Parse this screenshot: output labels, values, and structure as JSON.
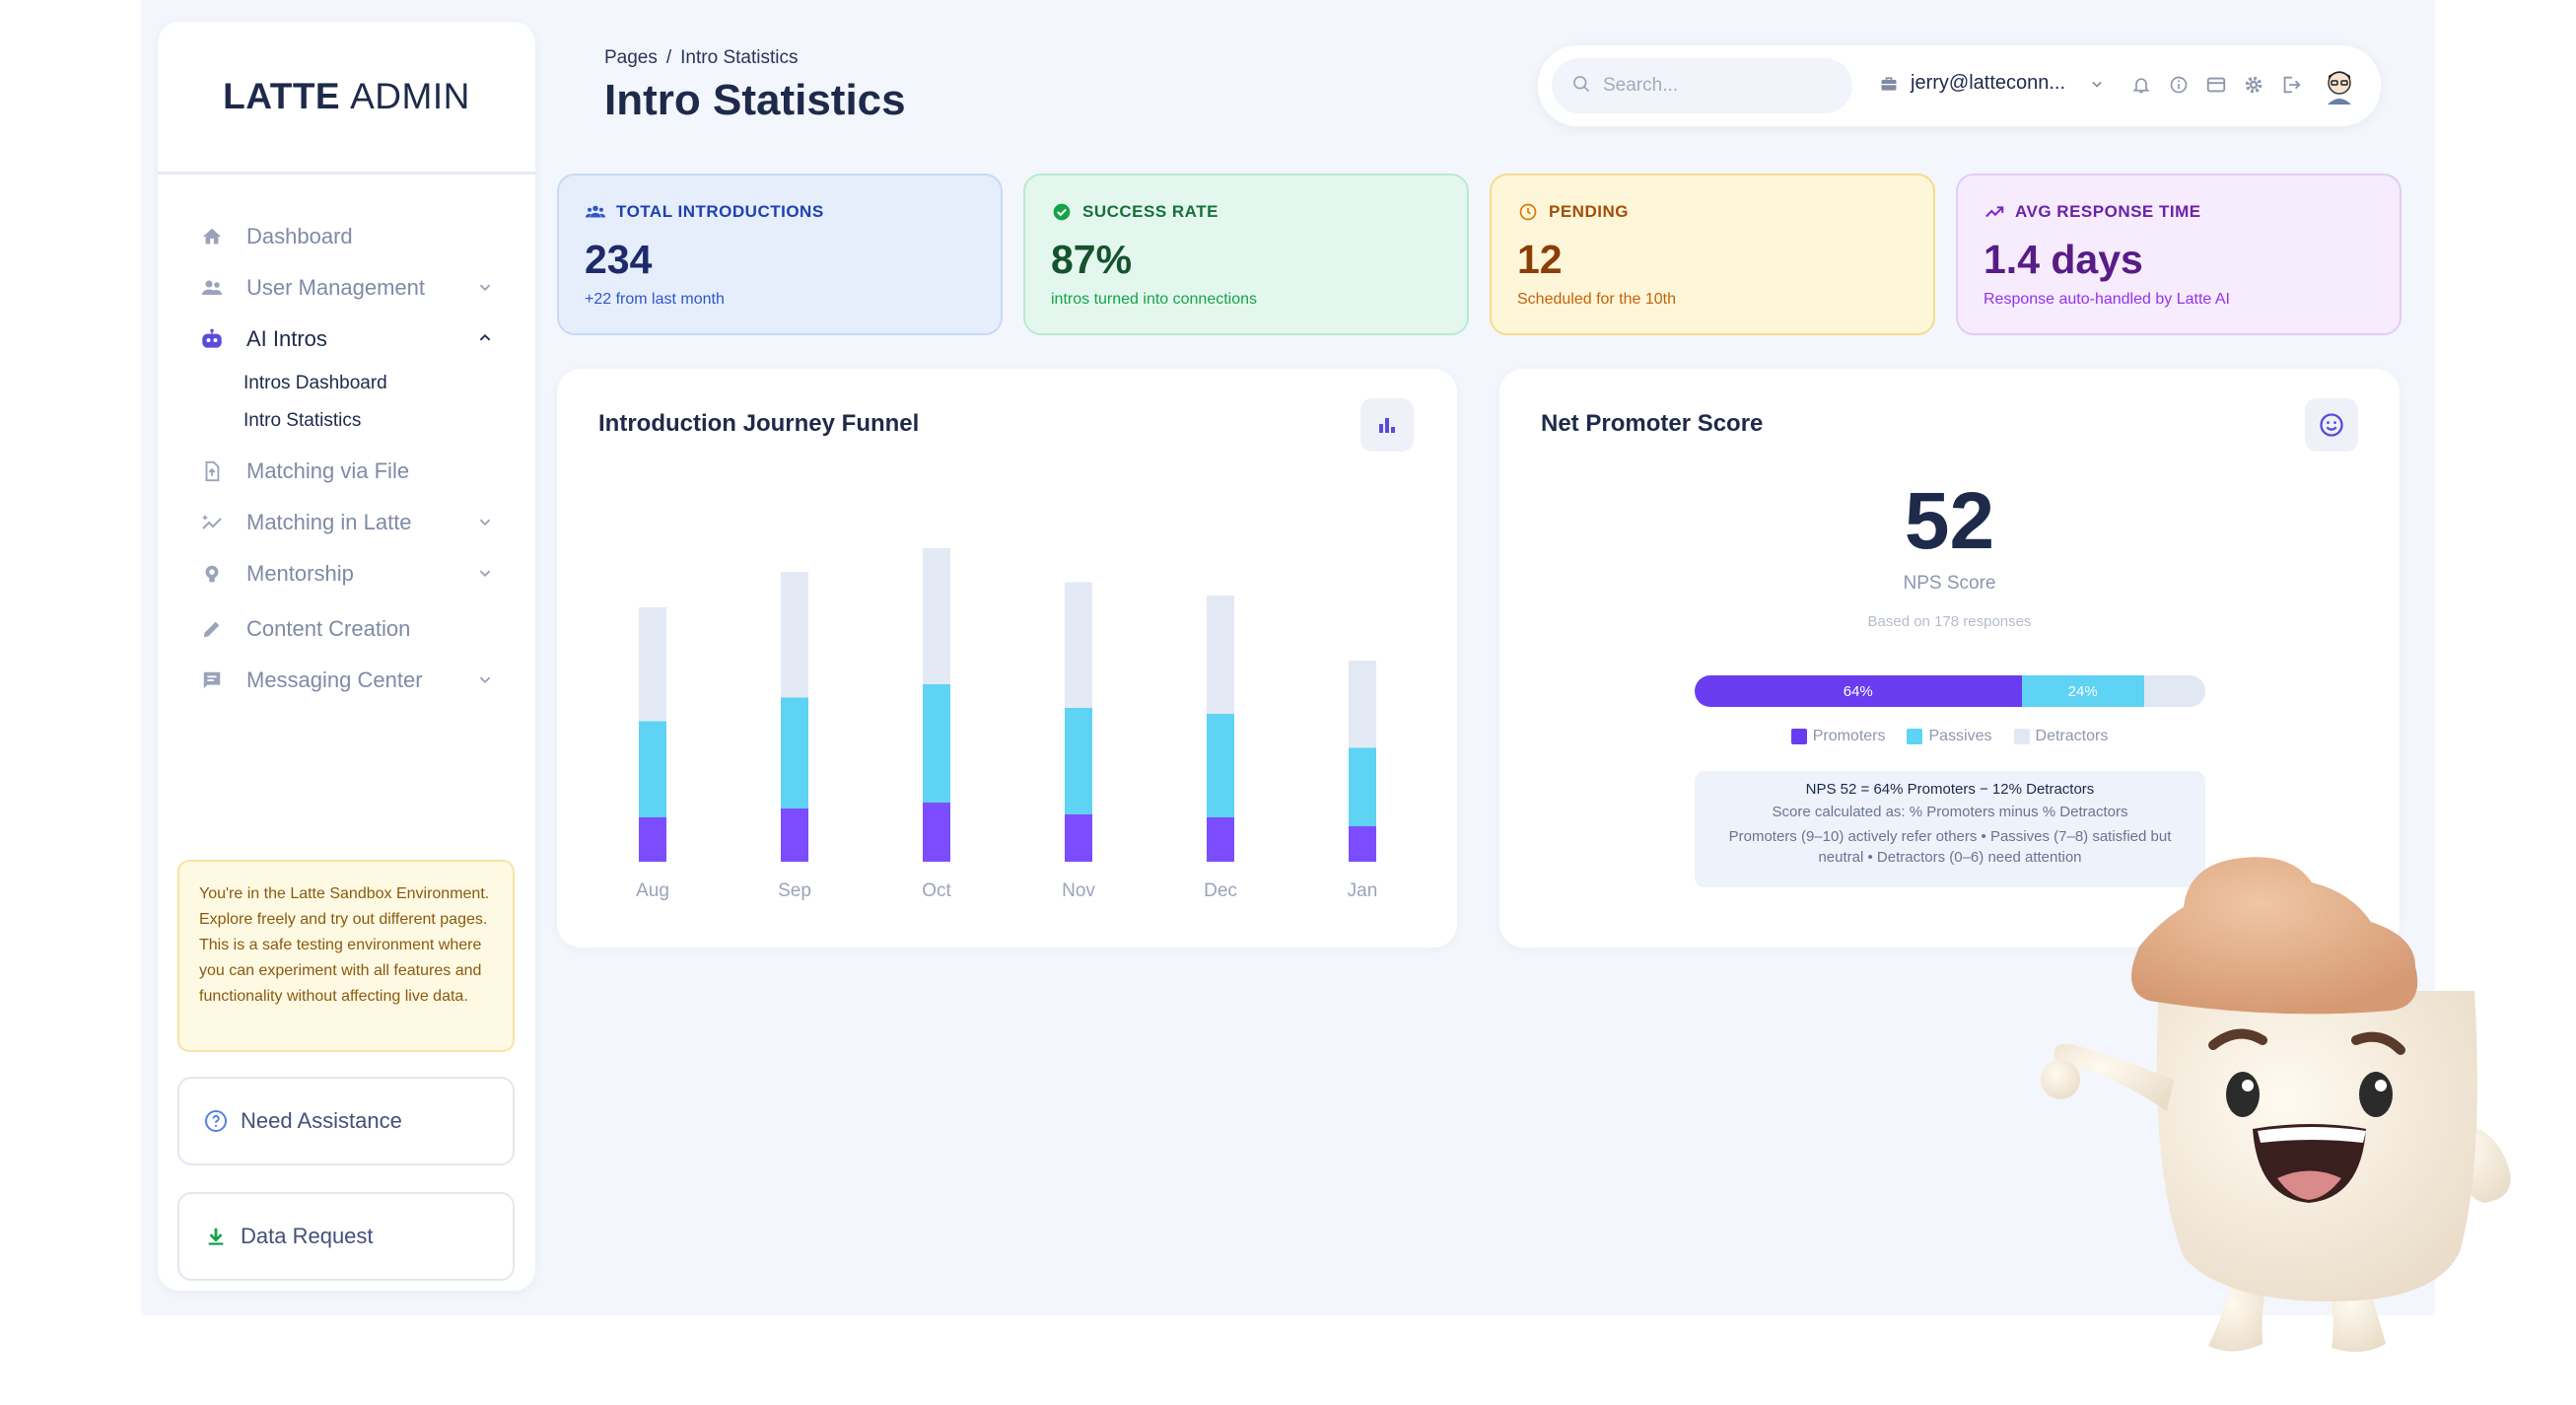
{
  "app": {
    "brand_bold": "LATTE",
    "brand_rest": "ADMIN"
  },
  "sidebar": {
    "items": [
      {
        "label": "Dashboard",
        "icon": "home-icon"
      },
      {
        "label": "User Management",
        "icon": "users-icon",
        "has_chevron": true
      },
      {
        "label": "AI Intros",
        "icon": "robot-icon",
        "has_chevron": true,
        "expanded": true
      },
      {
        "label": "Matching via File",
        "icon": "file-upload-icon"
      },
      {
        "label": "Matching in Latte",
        "icon": "sparkle-icon",
        "has_chevron": true
      },
      {
        "label": "Mentorship",
        "icon": "lightbulb-icon",
        "has_chevron": true
      },
      {
        "label": "Content Creation",
        "icon": "pencil-icon"
      },
      {
        "label": "Messaging Center",
        "icon": "message-icon",
        "has_chevron": true
      }
    ],
    "sub_items": [
      "Intros Dashboard",
      "Intro Statistics"
    ],
    "sandbox_text": "You're in the Latte Sandbox Environment. Explore freely and try out different pages. This is a safe testing environment where you can experiment with all features and functionality without affecting live data.",
    "assist_label": "Need Assistance",
    "data_request_label": "Data Request"
  },
  "header": {
    "breadcrumb_root": "Pages",
    "breadcrumb_sep": "/",
    "breadcrumb_current": "Intro Statistics",
    "title": "Intro Statistics",
    "search_placeholder": "Search...",
    "account": "jerry@latteconn..."
  },
  "stats": [
    {
      "label": "TOTAL INTRODUCTIONS",
      "value": "234",
      "sub": "+22 from last month",
      "icon": "users-icon",
      "color": "#1e40af"
    },
    {
      "label": "SUCCESS RATE",
      "value": "87%",
      "sub": "intros turned into connections",
      "icon": "check-circle-icon",
      "color": "#15803d"
    },
    {
      "label": "PENDING",
      "value": "12",
      "sub": "Scheduled for the 10th",
      "icon": "clock-icon",
      "color": "#b45309"
    },
    {
      "label": "AVG RESPONSE TIME",
      "value": "1.4 days",
      "sub": "Response auto-handled by Latte AI",
      "icon": "trend-up-icon",
      "color": "#6b21a8"
    }
  ],
  "funnel": {
    "title": "Introduction Journey Funnel"
  },
  "chart_data": {
    "type": "bar",
    "stacked": true,
    "title": "Introduction Journey Funnel",
    "categories": [
      "Aug",
      "Sep",
      "Oct",
      "Nov",
      "Dec",
      "Jan"
    ],
    "series": [
      {
        "values": [
          30,
          36,
          40,
          32,
          30,
          24
        ],
        "color": "#7c4dff"
      },
      {
        "values": [
          65,
          75,
          80,
          72,
          70,
          53
        ],
        "color": "#5ed3f3"
      },
      {
        "values": [
          77,
          85,
          92,
          85,
          80,
          59
        ],
        "color": "#e3e9f5"
      }
    ],
    "ylim": [
      0,
      220
    ],
    "grid": false
  },
  "nps": {
    "title": "Net Promoter Score",
    "score": "52",
    "label": "NPS Score",
    "based_on": "Based on 178 responses",
    "promoters_pct": 64,
    "passives_pct": 24,
    "detractors_pct": 12,
    "promoters_text": "64%",
    "passives_text": "24%",
    "legend": [
      "Promoters",
      "Passives",
      "Detractors"
    ],
    "colors": {
      "promoters": "#6a3cf0",
      "passives": "#5ed3f3",
      "detractors": "#e2e8f3"
    },
    "formula": "NPS 52 = 64% Promoters − 12% Detractors",
    "calc": "Score calculated as: % Promoters minus % Detractors",
    "desc": "Promoters (9–10) actively refer others • Passives (7–8) satisfied but neutral • Detractors (0–6) need attention"
  },
  "colors": {
    "accent": "#5b4bdb",
    "bg": "#f3f6fc"
  }
}
